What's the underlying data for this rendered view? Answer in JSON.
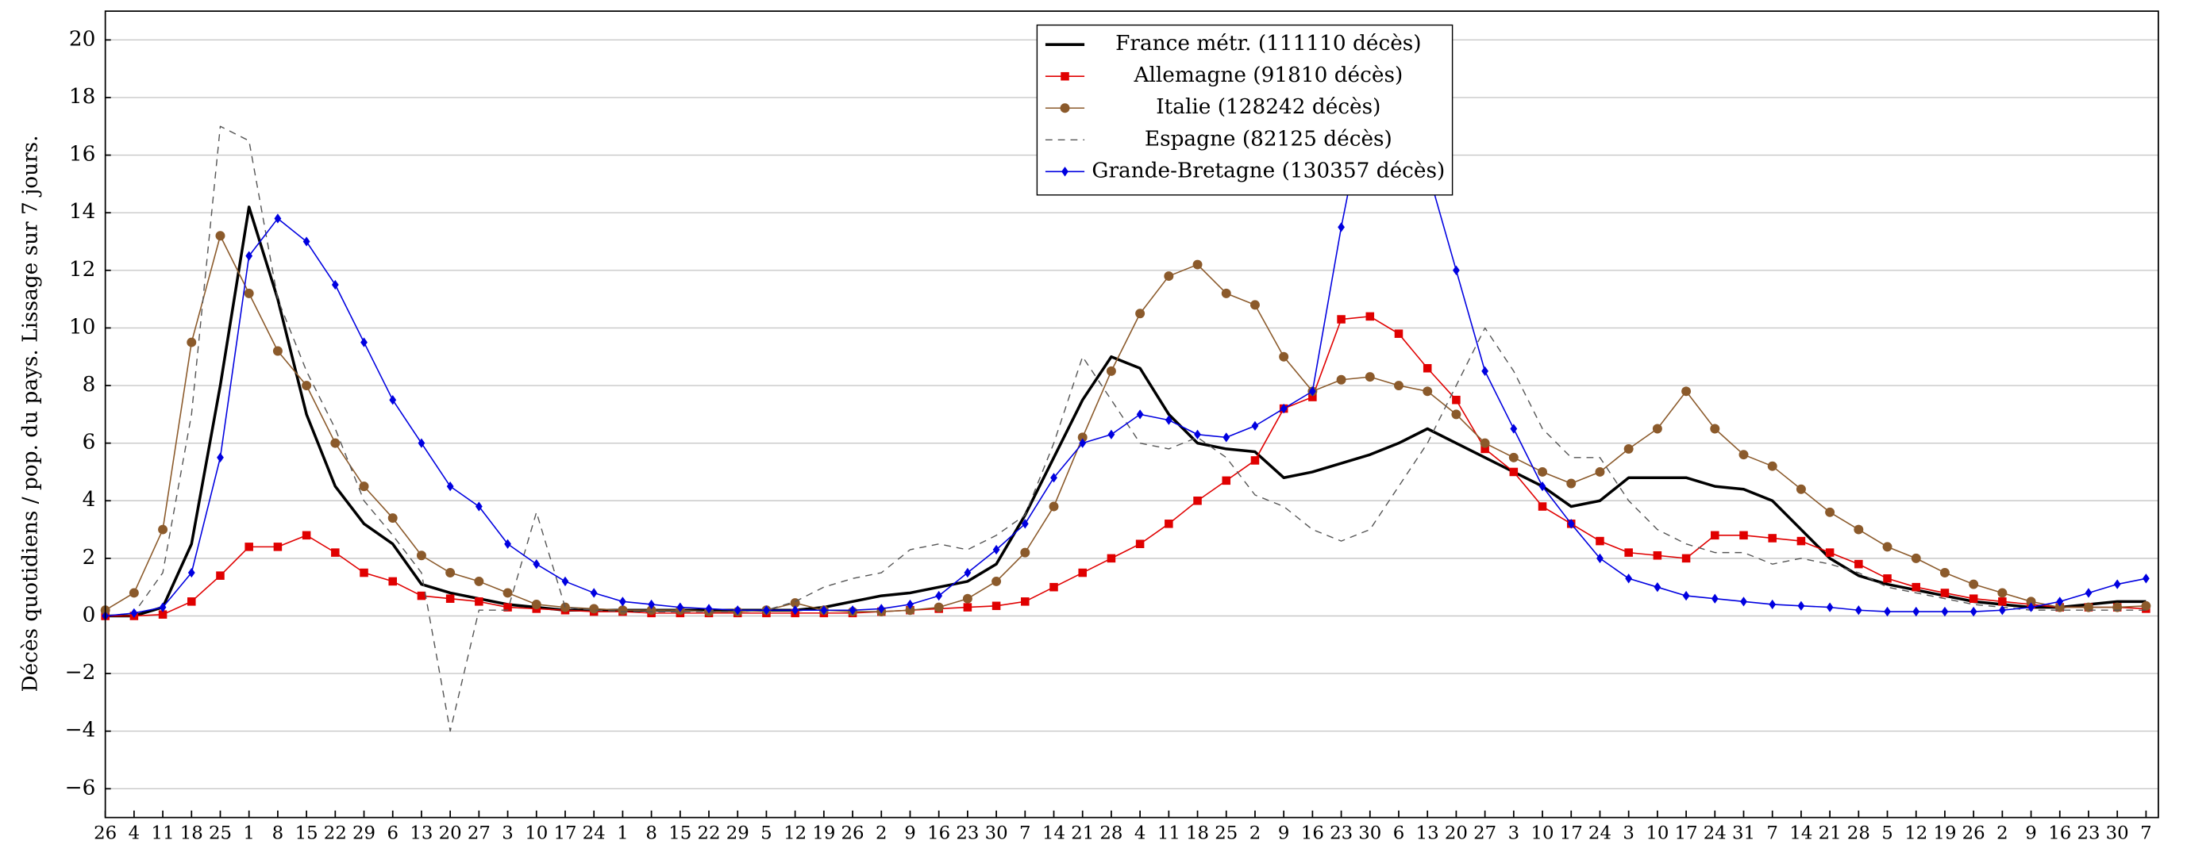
{
  "chart_data": {
    "type": "line",
    "ylabel": "Décès quotidiens / pop. du pays. Lissage sur 7 jours.",
    "x": [
      0,
      7,
      14,
      21,
      28,
      35,
      42,
      49,
      56,
      63,
      70,
      77,
      84,
      91,
      98,
      105,
      112,
      119,
      126,
      133,
      140,
      147,
      154,
      161,
      168,
      175,
      182,
      189,
      196,
      203,
      210,
      217,
      224,
      231,
      238,
      245,
      252,
      259,
      266,
      273,
      280,
      287,
      294,
      301,
      308,
      315,
      322,
      329,
      336,
      343,
      350,
      357,
      364,
      371,
      378,
      385,
      392,
      399,
      406,
      413,
      420,
      427,
      434,
      441,
      448,
      455,
      462,
      469,
      476,
      483,
      490,
      497
    ],
    "xlim": [
      0,
      500
    ],
    "xticks": [
      {
        "value": 0,
        "label": "26"
      },
      {
        "value": 7,
        "label": "4"
      },
      {
        "value": 14,
        "label": "11"
      },
      {
        "value": 21,
        "label": "18"
      },
      {
        "value": 28,
        "label": "25"
      },
      {
        "value": 35,
        "label": "1"
      },
      {
        "value": 42,
        "label": "8"
      },
      {
        "value": 49,
        "label": "15"
      },
      {
        "value": 56,
        "label": "22"
      },
      {
        "value": 63,
        "label": "29"
      },
      {
        "value": 70,
        "label": "6"
      },
      {
        "value": 77,
        "label": "13"
      },
      {
        "value": 84,
        "label": "20"
      },
      {
        "value": 91,
        "label": "27"
      },
      {
        "value": 98,
        "label": "3"
      },
      {
        "value": 105,
        "label": "10"
      },
      {
        "value": 112,
        "label": "17"
      },
      {
        "value": 119,
        "label": "24"
      },
      {
        "value": 126,
        "label": "1"
      },
      {
        "value": 133,
        "label": "8"
      },
      {
        "value": 140,
        "label": "15"
      },
      {
        "value": 147,
        "label": "22"
      },
      {
        "value": 154,
        "label": "29"
      },
      {
        "value": 161,
        "label": "5"
      },
      {
        "value": 168,
        "label": "12"
      },
      {
        "value": 175,
        "label": "19"
      },
      {
        "value": 182,
        "label": "26"
      },
      {
        "value": 189,
        "label": "2"
      },
      {
        "value": 196,
        "label": "9"
      },
      {
        "value": 203,
        "label": "16"
      },
      {
        "value": 210,
        "label": "23"
      },
      {
        "value": 217,
        "label": "30"
      },
      {
        "value": 224,
        "label": "7"
      },
      {
        "value": 231,
        "label": "14"
      },
      {
        "value": 238,
        "label": "21"
      },
      {
        "value": 245,
        "label": "28"
      },
      {
        "value": 252,
        "label": "4"
      },
      {
        "value": 259,
        "label": "11"
      },
      {
        "value": 266,
        "label": "18"
      },
      {
        "value": 273,
        "label": "25"
      },
      {
        "value": 280,
        "label": "2"
      },
      {
        "value": 287,
        "label": "9"
      },
      {
        "value": 294,
        "label": "16"
      },
      {
        "value": 301,
        "label": "23"
      },
      {
        "value": 308,
        "label": "30"
      },
      {
        "value": 315,
        "label": "6"
      },
      {
        "value": 322,
        "label": "13"
      },
      {
        "value": 329,
        "label": "20"
      },
      {
        "value": 336,
        "label": "27"
      },
      {
        "value": 343,
        "label": "3"
      },
      {
        "value": 350,
        "label": "10"
      },
      {
        "value": 357,
        "label": "17"
      },
      {
        "value": 364,
        "label": "24"
      },
      {
        "value": 371,
        "label": "3"
      },
      {
        "value": 378,
        "label": "10"
      },
      {
        "value": 385,
        "label": "17"
      },
      {
        "value": 392,
        "label": "24"
      },
      {
        "value": 399,
        "label": "31"
      },
      {
        "value": 406,
        "label": "7"
      },
      {
        "value": 413,
        "label": "14"
      },
      {
        "value": 420,
        "label": "21"
      },
      {
        "value": 427,
        "label": "28"
      },
      {
        "value": 434,
        "label": "5"
      },
      {
        "value": 441,
        "label": "12"
      },
      {
        "value": 448,
        "label": "19"
      },
      {
        "value": 455,
        "label": "26"
      },
      {
        "value": 462,
        "label": "2"
      },
      {
        "value": 469,
        "label": "9"
      },
      {
        "value": 476,
        "label": "16"
      },
      {
        "value": 483,
        "label": "23"
      },
      {
        "value": 490,
        "label": "30"
      },
      {
        "value": 497,
        "label": "7"
      }
    ],
    "ylim": [
      -7,
      21
    ],
    "yticks": [
      {
        "value": -6,
        "label": "−6"
      },
      {
        "value": -4,
        "label": "−4"
      },
      {
        "value": -2,
        "label": "−2"
      },
      0,
      2,
      4,
      6,
      8,
      10,
      12,
      14,
      16,
      18,
      20
    ],
    "grid": true,
    "legend": "top-center",
    "series": [
      {
        "name": "France métr. (111110 décès)",
        "color": "#000000",
        "values": [
          0,
          0,
          0.3,
          2.5,
          8,
          14.2,
          11,
          7,
          4.5,
          3.2,
          2.5,
          1.1,
          0.8,
          0.6,
          0.4,
          0.3,
          0.2,
          0.2,
          0.2,
          0.2,
          0.2,
          0.2,
          0.2,
          0.2,
          0.2,
          0.3,
          0.5,
          0.7,
          0.8,
          1.0,
          1.2,
          1.8,
          3.5,
          5.5,
          7.5,
          9.0,
          8.6,
          7.0,
          6.0,
          5.8,
          5.7,
          4.8,
          5.0,
          5.3,
          5.6,
          6.0,
          6.5,
          6.0,
          5.5,
          5.0,
          4.5,
          3.8,
          4.0,
          4.8,
          4.8,
          4.8,
          4.5,
          4.4,
          4.0,
          3.0,
          2.0,
          1.4,
          1.1,
          0.9,
          0.7,
          0.5,
          0.4,
          0.3,
          0.3,
          0.4,
          0.5,
          0.5
        ]
      },
      {
        "name": "Allemagne (91810 décès)",
        "color": "#e00000",
        "marker": "square",
        "values": [
          0,
          0,
          0.05,
          0.5,
          1.4,
          2.4,
          2.4,
          2.8,
          2.2,
          1.5,
          1.2,
          0.7,
          0.6,
          0.5,
          0.3,
          0.25,
          0.2,
          0.15,
          0.15,
          0.1,
          0.1,
          0.1,
          0.1,
          0.1,
          0.1,
          0.1,
          0.1,
          0.15,
          0.2,
          0.25,
          0.3,
          0.35,
          0.5,
          1.0,
          1.5,
          2.0,
          2.5,
          3.2,
          4.0,
          4.7,
          5.4,
          7.2,
          7.6,
          10.3,
          10.4,
          9.8,
          8.6,
          7.5,
          5.8,
          5.0,
          3.8,
          3.2,
          2.6,
          2.2,
          2.1,
          2.0,
          2.8,
          2.8,
          2.7,
          2.6,
          2.2,
          1.8,
          1.3,
          1.0,
          0.8,
          0.6,
          0.5,
          0.4,
          0.3,
          0.3,
          0.3,
          0.25
        ]
      },
      {
        "name": "Italie (128242 décès)",
        "color": "#8b5a2b",
        "marker": "circle",
        "values": [
          0.2,
          0.8,
          3.0,
          9.5,
          13.2,
          11.2,
          9.2,
          8.0,
          6.0,
          4.5,
          3.4,
          2.1,
          1.5,
          1.2,
          0.8,
          0.4,
          0.3,
          0.25,
          0.2,
          0.2,
          0.2,
          0.15,
          0.15,
          0.2,
          0.45,
          0.2,
          0.15,
          0.15,
          0.2,
          0.3,
          0.6,
          1.2,
          2.2,
          3.8,
          6.2,
          8.5,
          10.5,
          11.8,
          12.2,
          11.2,
          10.8,
          9.0,
          7.8,
          8.2,
          8.3,
          8.0,
          7.8,
          7.0,
          6.0,
          5.5,
          5.0,
          4.6,
          5.0,
          5.8,
          6.5,
          7.8,
          6.5,
          5.6,
          5.2,
          4.4,
          3.6,
          3.0,
          2.4,
          2.0,
          1.5,
          1.1,
          0.8,
          0.5,
          0.3,
          0.3,
          0.3,
          0.35
        ]
      },
      {
        "name": "Espagne (82125 décès)",
        "color": "#555555",
        "dashed": true,
        "values": [
          0,
          0.1,
          1.5,
          7,
          17.0,
          16.5,
          11,
          8.5,
          6.5,
          4.0,
          2.8,
          1.5,
          -4.0,
          0.2,
          0.2,
          3.6,
          0.3,
          0.2,
          0.15,
          0.15,
          0.15,
          0.15,
          0.15,
          0.2,
          0.5,
          1.0,
          1.3,
          1.5,
          2.3,
          2.5,
          2.3,
          2.8,
          3.5,
          6.0,
          9.0,
          7.5,
          6.0,
          5.8,
          6.2,
          5.5,
          4.2,
          3.8,
          3.0,
          2.6,
          3.0,
          4.5,
          6.0,
          8.0,
          10.0,
          8.5,
          6.5,
          5.5,
          5.5,
          4.0,
          3.0,
          2.5,
          2.2,
          2.2,
          1.8,
          2.0,
          1.8,
          1.5,
          1.0,
          0.8,
          0.6,
          0.4,
          0.3,
          0.2,
          0.2,
          0.2,
          0.2,
          0.2
        ]
      },
      {
        "name": "Grande-Bretagne (130357 décès)",
        "color": "#0000e0",
        "marker": "diamond",
        "values": [
          0,
          0.1,
          0.3,
          1.5,
          5.5,
          12.5,
          13.8,
          13.0,
          11.5,
          9.5,
          7.5,
          6.0,
          4.5,
          3.8,
          2.5,
          1.8,
          1.2,
          0.8,
          0.5,
          0.4,
          0.3,
          0.25,
          0.2,
          0.2,
          0.2,
          0.2,
          0.2,
          0.25,
          0.4,
          0.7,
          1.5,
          2.3,
          3.2,
          4.8,
          6.0,
          6.3,
          7.0,
          6.8,
          6.3,
          6.2,
          6.6,
          7.2,
          7.8,
          13.5,
          18.5,
          18.2,
          15.5,
          12.0,
          8.5,
          6.5,
          4.5,
          3.2,
          2.0,
          1.3,
          1.0,
          0.7,
          0.6,
          0.5,
          0.4,
          0.35,
          0.3,
          0.2,
          0.15,
          0.15,
          0.15,
          0.15,
          0.2,
          0.3,
          0.5,
          0.8,
          1.1,
          1.3
        ]
      }
    ]
  }
}
